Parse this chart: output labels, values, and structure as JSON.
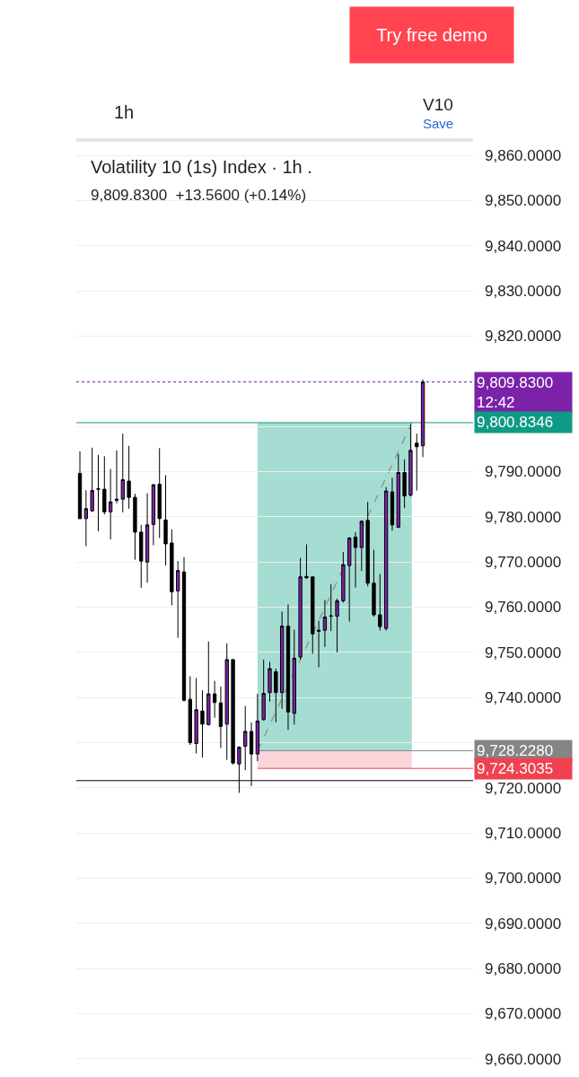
{
  "chart_data": {
    "type": "candlestick",
    "title": "Volatility 10 (1s) Index · 1h .",
    "subtitle": "9,809.8300  +13.5600 (+0.14%)",
    "categories": [
      null,
      null,
      null,
      null,
      null,
      null,
      null,
      null,
      null,
      null,
      null,
      null,
      null,
      null,
      null,
      null,
      null,
      null,
      null,
      null,
      null,
      null,
      null,
      null,
      null,
      null,
      null,
      null,
      null,
      null,
      null,
      null,
      null,
      null,
      null,
      null,
      null,
      null,
      null,
      null,
      null,
      null,
      null,
      null,
      null,
      null,
      null,
      null,
      null,
      null,
      null,
      null,
      null,
      null,
      null,
      null,
      null
    ],
    "ohlc": [
      [
        9789.6,
        9794.5,
        9779.5,
        9779.6
      ],
      [
        9779.6,
        9785.9,
        9773.5,
        9781.8
      ],
      [
        9781.3,
        9795.3,
        9781.1,
        9785.8
      ],
      [
        9786.2,
        9793.7,
        9776.8,
        9786.1
      ],
      [
        9786.1,
        9793.4,
        9780.5,
        9781.1
      ],
      [
        9781.1,
        9790.6,
        9775.0,
        9783.3
      ],
      [
        9783.9,
        9794.7,
        9783.0,
        9783.7
      ],
      [
        9783.9,
        9798.4,
        9781.0,
        9788.2
      ],
      [
        9787.9,
        9795.7,
        9781.8,
        9784.3
      ],
      [
        9784.3,
        9785.1,
        9770.5,
        9776.6
      ],
      [
        9776.6,
        9778.2,
        9764.3,
        9770.2
      ],
      [
        9770.0,
        9785.2,
        9765.4,
        9778.2
      ],
      [
        9778.3,
        9787.2,
        9773.7,
        9787.1
      ],
      [
        9787.2,
        9795.2,
        9775.3,
        9779.6
      ],
      [
        9779.3,
        9789.2,
        9769.2,
        9774.0
      ],
      [
        9774.2,
        9777.2,
        9760.4,
        9763.4
      ],
      [
        9763.6,
        9770.2,
        9753.2,
        9768.1
      ],
      [
        9767.8,
        9771.1,
        9739.1,
        9739.4
      ],
      [
        9739.6,
        9744.7,
        9729.5,
        9730.0
      ],
      [
        9729.8,
        9744.3,
        9727.6,
        9737.3
      ],
      [
        9737.0,
        9741.6,
        9726.7,
        9734.1
      ],
      [
        9734.0,
        9752.4,
        9733.8,
        9740.8
      ],
      [
        9740.8,
        9743.7,
        9735.5,
        9738.9
      ],
      [
        9738.8,
        9742.4,
        9728.8,
        9733.6
      ],
      [
        9734.1,
        9752.0,
        9726.2,
        9748.4
      ],
      [
        9748.4,
        9748.4,
        9725.2,
        9725.5
      ],
      [
        9725.3,
        9729.2,
        9718.9,
        9729.0
      ],
      [
        9729.2,
        9738.1,
        9723.9,
        9732.5
      ],
      [
        9732.5,
        9734.5,
        9720.4,
        9727.5
      ],
      [
        9727.5,
        9740.8,
        9725.9,
        9734.8
      ],
      [
        9735.1,
        9748.4,
        9734.9,
        9740.9
      ],
      [
        9741.1,
        9747.9,
        9739.1,
        9746.4
      ],
      [
        9745.7,
        9746.4,
        9734.5,
        9741.1
      ],
      [
        9741.1,
        9759.0,
        9737.5,
        9755.8
      ],
      [
        9755.8,
        9760.6,
        9732.8,
        9736.8
      ],
      [
        9736.5,
        9755.0,
        9734.0,
        9748.7
      ],
      [
        9749.0,
        9770.9,
        9748.4,
        9766.7
      ],
      [
        9766.8,
        9773.9,
        9766.3,
        9766.5
      ],
      [
        9766.7,
        9766.7,
        9749.7,
        9754.1
      ],
      [
        9754.9,
        9757.0,
        9746.7,
        9754.7
      ],
      [
        9754.9,
        9761.6,
        9751.2,
        9757.8
      ],
      [
        9758.1,
        9765.1,
        9754.7,
        9758.0
      ],
      [
        9758.0,
        9761.9,
        9750.0,
        9761.4
      ],
      [
        9761.4,
        9772.2,
        9761.0,
        9769.4
      ],
      [
        9769.2,
        9775.5,
        9756.8,
        9775.3
      ],
      [
        9775.5,
        9776.6,
        9764.3,
        9773.2
      ],
      [
        9773.2,
        9779.2,
        9768.0,
        9779.0
      ],
      [
        9779.2,
        9783.3,
        9764.6,
        9765.3
      ],
      [
        9765.3,
        9772.7,
        9757.9,
        9758.3
      ],
      [
        9758.3,
        9767.3,
        9754.8,
        9755.7
      ],
      [
        9755.3,
        9786.6,
        9754.8,
        9785.7
      ],
      [
        9785.5,
        9788.6,
        9776.9,
        9778.2
      ],
      [
        9777.7,
        9793.9,
        9777.5,
        9789.8
      ],
      [
        9789.8,
        9792.7,
        9781.9,
        9784.6
      ],
      [
        9784.8,
        9800.4,
        9784.5,
        9794.7
      ],
      [
        9796.3,
        9798.4,
        9785.8,
        9795.5
      ],
      [
        9795.7,
        9810.4,
        9793.2,
        9809.83
      ]
    ],
    "colors": [
      "#000000",
      "#7b22a8",
      "#7b22a8",
      "#000000",
      "#000000",
      "#7b22a8",
      "#000000",
      "#7b22a8",
      "#000000",
      "#000000",
      "#000000",
      "#7b22a8",
      "#7b22a8",
      "#000000",
      "#000000",
      "#000000",
      "#7b22a8",
      "#000000",
      "#000000",
      "#7b22a8",
      "#000000",
      "#7b22a8",
      "#000000",
      "#000000",
      "#7b22a8",
      "#000000",
      "#7b22a8",
      "#7b22a8",
      "#000000",
      "#7b22a8",
      "#7b22a8",
      "#7b22a8",
      "#000000",
      "#7b22a8",
      "#000000",
      "#7b22a8",
      "#7b22a8",
      "#000000",
      "#000000",
      "#000000",
      "#7b22a8",
      "#000000",
      "#7b22a8",
      "#7b22a8",
      "#7b22a8",
      "#000000",
      "#7b22a8",
      "#000000",
      "#000000",
      "#000000",
      "#7b22a8",
      "#000000",
      "#7b22a8",
      "#000000",
      "#7b22a8",
      "#000000",
      "#7b22a8"
    ],
    "ylim": [
      9656,
      9863
    ],
    "yticks": [
      {
        "value": 9660,
        "label": "9,660.0000"
      },
      {
        "value": 9670,
        "label": "9,670.0000"
      },
      {
        "value": 9680,
        "label": "9,680.0000"
      },
      {
        "value": 9690,
        "label": "9,690.0000"
      },
      {
        "value": 9700,
        "label": "9,700.0000"
      },
      {
        "value": 9710,
        "label": "9,710.0000"
      },
      {
        "value": 9720,
        "label": "9,720.0000"
      },
      {
        "value": 9730,
        "label": null
      },
      {
        "value": 9740,
        "label": "9,740.0000"
      },
      {
        "value": 9750,
        "label": "9,750.0000"
      },
      {
        "value": 9760,
        "label": "9,760.0000"
      },
      {
        "value": 9770,
        "label": "9,770.0000"
      },
      {
        "value": 9780,
        "label": "9,780.0000"
      },
      {
        "value": 9790,
        "label": "9,790.0000"
      },
      {
        "value": 9800,
        "label": null
      },
      {
        "value": 9810,
        "label": null
      },
      {
        "value": 9820,
        "label": "9,820.0000"
      },
      {
        "value": 9830,
        "label": "9,830.0000"
      },
      {
        "value": 9840,
        "label": "9,840.0000"
      },
      {
        "value": 9850,
        "label": "9,850.0000"
      },
      {
        "value": 9860,
        "label": "9,860.0000"
      }
    ],
    "grid": "y",
    "tick_labels": "y",
    "bands": [
      {
        "axis": "y",
        "from": 9728.228,
        "to": 9800.8346,
        "color": "#a6ddd3"
      },
      {
        "axis": "y",
        "from": 9724.3035,
        "to": 9728.228,
        "color": "#fad4d8"
      }
    ],
    "ref_lines": [
      {
        "axis": "y",
        "value": 9809.83,
        "label": "9,809.8300\n12:42",
        "color": "#7b22a8",
        "line_style": "dotted"
      },
      {
        "axis": "y",
        "value": 9800.8346,
        "label": "9,800.8346",
        "color": "#0f9a85",
        "line_style": "solid"
      },
      {
        "axis": "y",
        "value": 9728.228,
        "label": "9,728.2280",
        "color": "#858585",
        "line_style": "solid"
      },
      {
        "axis": "y",
        "value": 9724.3035,
        "label": "9,724.3035",
        "color": "#f0414f",
        "line_style": "solid"
      },
      {
        "axis": "y",
        "value": 9721.6,
        "color": "#000000",
        "line_style": "solid"
      }
    ],
    "annotations": [
      "Try free demo",
      "1h",
      "V10",
      "Save"
    ]
  }
}
